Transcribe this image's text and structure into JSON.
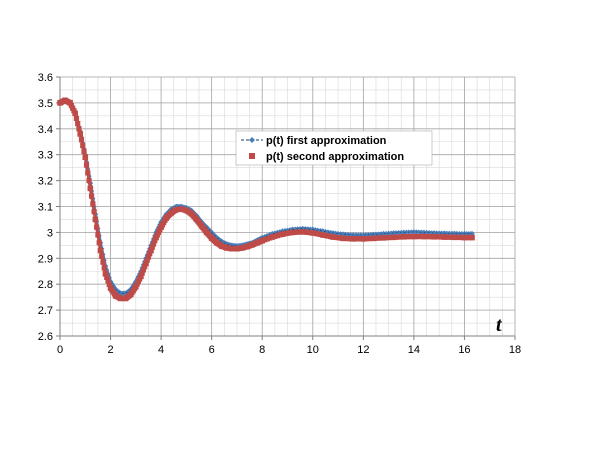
{
  "chart_data": {
    "type": "line",
    "title": "",
    "xlabel": "t",
    "ylabel": "",
    "xlim": [
      0,
      18
    ],
    "ylim": [
      2.6,
      3.6
    ],
    "x_ticks": [
      0,
      2,
      4,
      6,
      8,
      10,
      12,
      14,
      16,
      18
    ],
    "y_ticks": [
      2.6,
      2.7,
      2.8,
      2.9,
      3,
      3.1,
      3.2,
      3.3,
      3.4,
      3.5,
      3.6
    ],
    "x_tick_labels": [
      "0",
      "2",
      "4",
      "6",
      "8",
      "10",
      "12",
      "14",
      "16",
      "18"
    ],
    "y_tick_labels": [
      "2.6",
      "2.7",
      "2.8",
      "2.9",
      "3",
      "3.1",
      "3.2",
      "3.3",
      "3.4",
      "3.5",
      "3.6"
    ],
    "x_minor_step": 0.5,
    "y_minor_step": 0.05,
    "grid": true,
    "legend_position": "inside-top-right",
    "series": [
      {
        "name": "p(t) first approximation",
        "color": "#4a7ebb",
        "marker": "diamond",
        "line_style": "dashed",
        "x": [
          0,
          0.2,
          0.4,
          0.6,
          0.8,
          1.0,
          1.2,
          1.4,
          1.6,
          1.8,
          2.0,
          2.2,
          2.4,
          2.6,
          2.8,
          3.0,
          3.2,
          3.4,
          3.6,
          3.8,
          4.0,
          4.2,
          4.4,
          4.6,
          4.8,
          5.0,
          5.2,
          5.4,
          5.6,
          5.8,
          6.0,
          6.2,
          6.4,
          6.6,
          6.8,
          7.0,
          7.2,
          7.4,
          7.6,
          7.8,
          8.0,
          8.4,
          8.8,
          9.2,
          9.6,
          10.0,
          10.4,
          10.8,
          11.2,
          11.6,
          12.0,
          12.4,
          12.8,
          13.2,
          13.6,
          14.0,
          14.4,
          14.8,
          15.2,
          15.6,
          16.0,
          16.3
        ],
        "y": [
          3.5,
          3.51,
          3.5,
          3.46,
          3.39,
          3.3,
          3.19,
          3.07,
          2.96,
          2.87,
          2.81,
          2.78,
          2.765,
          2.765,
          2.78,
          2.81,
          2.85,
          2.9,
          2.95,
          3.0,
          3.04,
          3.07,
          3.09,
          3.1,
          3.1,
          3.095,
          3.085,
          3.065,
          3.04,
          3.02,
          3.0,
          2.98,
          2.965,
          2.955,
          2.95,
          2.948,
          2.95,
          2.955,
          2.96,
          2.97,
          2.98,
          2.995,
          3.005,
          3.012,
          3.015,
          3.012,
          3.005,
          2.998,
          2.993,
          2.99,
          2.99,
          2.992,
          2.995,
          2.998,
          3.0,
          3.002,
          3.0,
          2.998,
          2.997,
          2.996,
          2.995,
          2.995
        ]
      },
      {
        "name": "p(t) second approximation",
        "color": "#be4b48",
        "marker": "square",
        "line_style": "solid",
        "x": [
          0,
          0.2,
          0.4,
          0.6,
          0.8,
          1.0,
          1.2,
          1.4,
          1.6,
          1.8,
          2.0,
          2.2,
          2.4,
          2.6,
          2.8,
          3.0,
          3.2,
          3.4,
          3.6,
          3.8,
          4.0,
          4.2,
          4.4,
          4.6,
          4.8,
          5.0,
          5.2,
          5.4,
          5.6,
          5.8,
          6.0,
          6.2,
          6.4,
          6.6,
          6.8,
          7.0,
          7.2,
          7.4,
          7.6,
          7.8,
          8.0,
          8.4,
          8.8,
          9.2,
          9.6,
          10.0,
          10.4,
          10.8,
          11.2,
          11.6,
          12.0,
          12.4,
          12.8,
          13.2,
          13.6,
          14.0,
          14.4,
          14.8,
          15.2,
          15.6,
          16.0,
          16.3
        ],
        "y": [
          3.5,
          3.51,
          3.5,
          3.46,
          3.38,
          3.29,
          3.17,
          3.05,
          2.93,
          2.84,
          2.785,
          2.755,
          2.745,
          2.745,
          2.76,
          2.79,
          2.83,
          2.88,
          2.93,
          2.98,
          3.02,
          3.055,
          3.075,
          3.088,
          3.09,
          3.085,
          3.072,
          3.05,
          3.025,
          3.0,
          2.978,
          2.96,
          2.947,
          2.94,
          2.937,
          2.937,
          2.94,
          2.945,
          2.952,
          2.96,
          2.968,
          2.982,
          2.993,
          3.0,
          3.002,
          2.998,
          2.99,
          2.982,
          2.977,
          2.975,
          2.975,
          2.977,
          2.979,
          2.981,
          2.983,
          2.984,
          2.984,
          2.983,
          2.982,
          2.981,
          2.98,
          2.98
        ]
      }
    ]
  }
}
